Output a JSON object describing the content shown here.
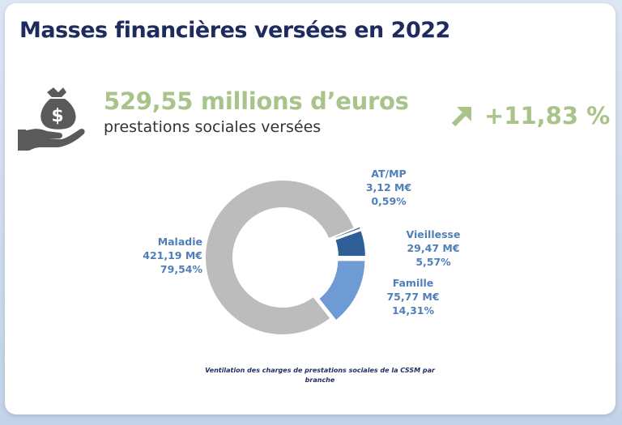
{
  "header": {
    "title": "Masses financières versées en 2022"
  },
  "summary": {
    "amount": "529,55 millions d’euros",
    "amount_caption": "prestations sociales versées",
    "growth": "+11,83 %",
    "money_icon": "hand-money-bag-icon",
    "trend_icon": "arrow-up-right-icon"
  },
  "chart_data": {
    "type": "pie",
    "donut": true,
    "title": "",
    "caption": "Ventilation des charges de prestations sociales de la CSSM par branche",
    "unit": "M€",
    "categories": [
      "Maladie",
      "Famille",
      "Vieillesse",
      "AT/MP"
    ],
    "values": [
      421.19,
      75.77,
      29.47,
      3.12
    ],
    "percentages": [
      79.54,
      14.31,
      5.57,
      0.59
    ],
    "value_labels": [
      "421,19 M€",
      "75,77 M€",
      "29,47 M€",
      "3,12 M€"
    ],
    "percent_labels": [
      "79,54%",
      "14,31%",
      "5,57%",
      "0,59%"
    ],
    "colors": [
      "#bcbcbc",
      "#6f9bd4",
      "#2e5f97",
      "#2e5f97"
    ],
    "label_color": "#4f7fb8"
  }
}
